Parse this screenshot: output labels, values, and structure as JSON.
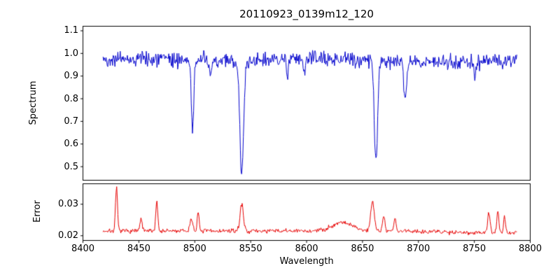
{
  "figure": {
    "background": "#ffffff",
    "frame_color": "#000000"
  },
  "chart_data": {
    "type": "line",
    "title": "20110923_0139m12_120",
    "xlabel": "Wavelength",
    "grid": false,
    "legend": "none",
    "xlim": [
      8400,
      8800
    ],
    "xticks": [
      8400,
      8450,
      8500,
      8550,
      8600,
      8650,
      8700,
      8750,
      8800
    ],
    "xtick_labels": [
      "8400",
      "8450",
      "8500",
      "8550",
      "8600",
      "8650",
      "8700",
      "8750",
      "8800"
    ],
    "x_data_range": [
      8418,
      8788
    ],
    "panels": [
      {
        "name": "spectrum",
        "ylabel": "Spectrum",
        "color": "#0000cc",
        "ylim": [
          0.44,
          1.12
        ],
        "yticks": [
          0.5,
          0.6,
          0.7,
          0.8,
          0.9,
          1.0,
          1.1
        ],
        "ytick_labels": [
          "0.5",
          "0.6",
          "0.7",
          "0.8",
          "0.9",
          "1.0",
          "1.1"
        ],
        "baseline": 0.968,
        "noise_std": 0.016,
        "noise_seed": 42,
        "n_points": 700,
        "absorption_lines": [
          {
            "center": 8498,
            "depth": 0.3,
            "sigma": 1.1
          },
          {
            "center": 8514,
            "depth": 0.07,
            "sigma": 1.0
          },
          {
            "center": 8542,
            "depth": 0.5,
            "sigma": 1.7
          },
          {
            "center": 8583,
            "depth": 0.06,
            "sigma": 1.0
          },
          {
            "center": 8598,
            "depth": 0.05,
            "sigma": 1.0
          },
          {
            "center": 8662,
            "depth": 0.44,
            "sigma": 1.5
          },
          {
            "center": 8688,
            "depth": 0.17,
            "sigma": 1.2
          },
          {
            "center": 8751,
            "depth": 0.07,
            "sigma": 1.0
          }
        ]
      },
      {
        "name": "error",
        "ylabel": "Error",
        "color": "#e60000",
        "ylim": [
          0.0185,
          0.0365
        ],
        "yticks": [
          0.02,
          0.03
        ],
        "ytick_labels": [
          "0.02",
          "0.03"
        ],
        "baseline": 0.0215,
        "noise_std": 0.00035,
        "noise_seed": 7,
        "n_points": 700,
        "peaks": [
          {
            "center": 8430,
            "amp": 0.0135,
            "sigma": 0.9
          },
          {
            "center": 8452,
            "amp": 0.004,
            "sigma": 0.9
          },
          {
            "center": 8466,
            "amp": 0.0095,
            "sigma": 0.9
          },
          {
            "center": 8497,
            "amp": 0.004,
            "sigma": 1.2
          },
          {
            "center": 8503,
            "amp": 0.0055,
            "sigma": 0.9
          },
          {
            "center": 8542,
            "amp": 0.0085,
            "sigma": 1.5
          },
          {
            "center": 8632,
            "amp": 0.0028,
            "sigma": 9.0
          },
          {
            "center": 8659,
            "amp": 0.0095,
            "sigma": 1.6
          },
          {
            "center": 8669,
            "amp": 0.005,
            "sigma": 1.0
          },
          {
            "center": 8679,
            "amp": 0.004,
            "sigma": 0.9
          },
          {
            "center": 8763,
            "amp": 0.006,
            "sigma": 1.1
          },
          {
            "center": 8771,
            "amp": 0.0065,
            "sigma": 0.9
          },
          {
            "center": 8777,
            "amp": 0.005,
            "sigma": 0.8
          }
        ]
      }
    ]
  }
}
